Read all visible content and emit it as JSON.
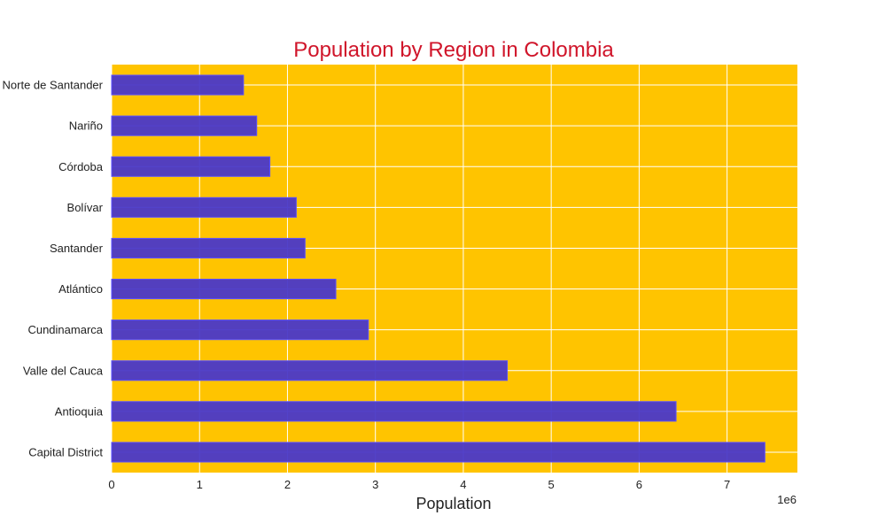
{
  "chart_data": {
    "type": "bar",
    "orientation": "horizontal",
    "title": "Population by Region in Colombia",
    "xlabel": "Population",
    "ylabel": "",
    "x_offset_label": "1e6",
    "xlim": [
      0,
      7800000
    ],
    "x_ticks": [
      0,
      1,
      2,
      3,
      4,
      5,
      6,
      7
    ],
    "grid": true,
    "categories": [
      "Capital District",
      "Antioquia",
      "Valle del Cauca",
      "Cundinamarca",
      "Atlántico",
      "Santander",
      "Bolívar",
      "Córdoba",
      "Nariño",
      "Norte de Santander"
    ],
    "values": [
      7430000,
      6420000,
      4500000,
      2920000,
      2550000,
      2200000,
      2100000,
      1800000,
      1650000,
      1500000
    ],
    "colors": {
      "plot_background": "#ffc400",
      "bar_fill": "#4a38c8",
      "bar_edge": "#5a50ff",
      "grid": "#ffffff",
      "title": "#d0152a"
    }
  }
}
